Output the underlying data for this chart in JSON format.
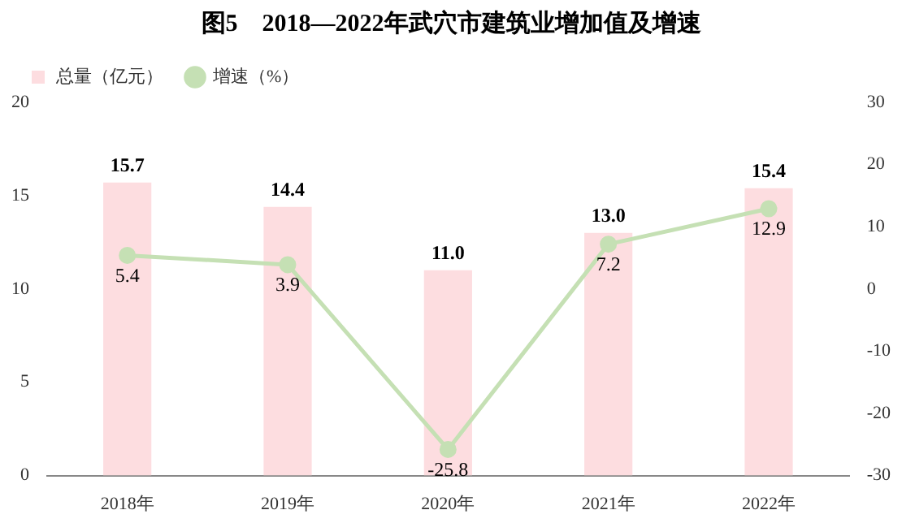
{
  "chart_data": {
    "type": "bar",
    "title": "图5　2018—2022年武穴市建筑业增加值及增速",
    "categories": [
      "2018年",
      "2019年",
      "2020年",
      "2021年",
      "2022年"
    ],
    "series": [
      {
        "name": "总量（亿元）",
        "color": "#fddde0",
        "values": [
          15.7,
          14.4,
          11.0,
          13.0,
          15.4
        ],
        "value_labels": [
          "15.7",
          "14.4",
          "11.0",
          "13.0",
          "15.4"
        ]
      },
      {
        "name": "增速（%）",
        "type": "line",
        "axis": "y2",
        "color": "#c5e0b4",
        "marker": "circle",
        "values": [
          5.4,
          3.9,
          -25.8,
          7.2,
          12.9
        ],
        "value_labels": [
          "5.4",
          "3.9",
          "-25.8",
          "7.2",
          "12.9"
        ]
      }
    ],
    "ylim": [
      0,
      20
    ],
    "yticks": [
      0,
      5,
      10,
      15,
      20
    ],
    "y2lim": [
      -30,
      30
    ],
    "y2ticks": [
      -30,
      -20,
      -10,
      0,
      10,
      20,
      30
    ],
    "legend": "top left"
  }
}
